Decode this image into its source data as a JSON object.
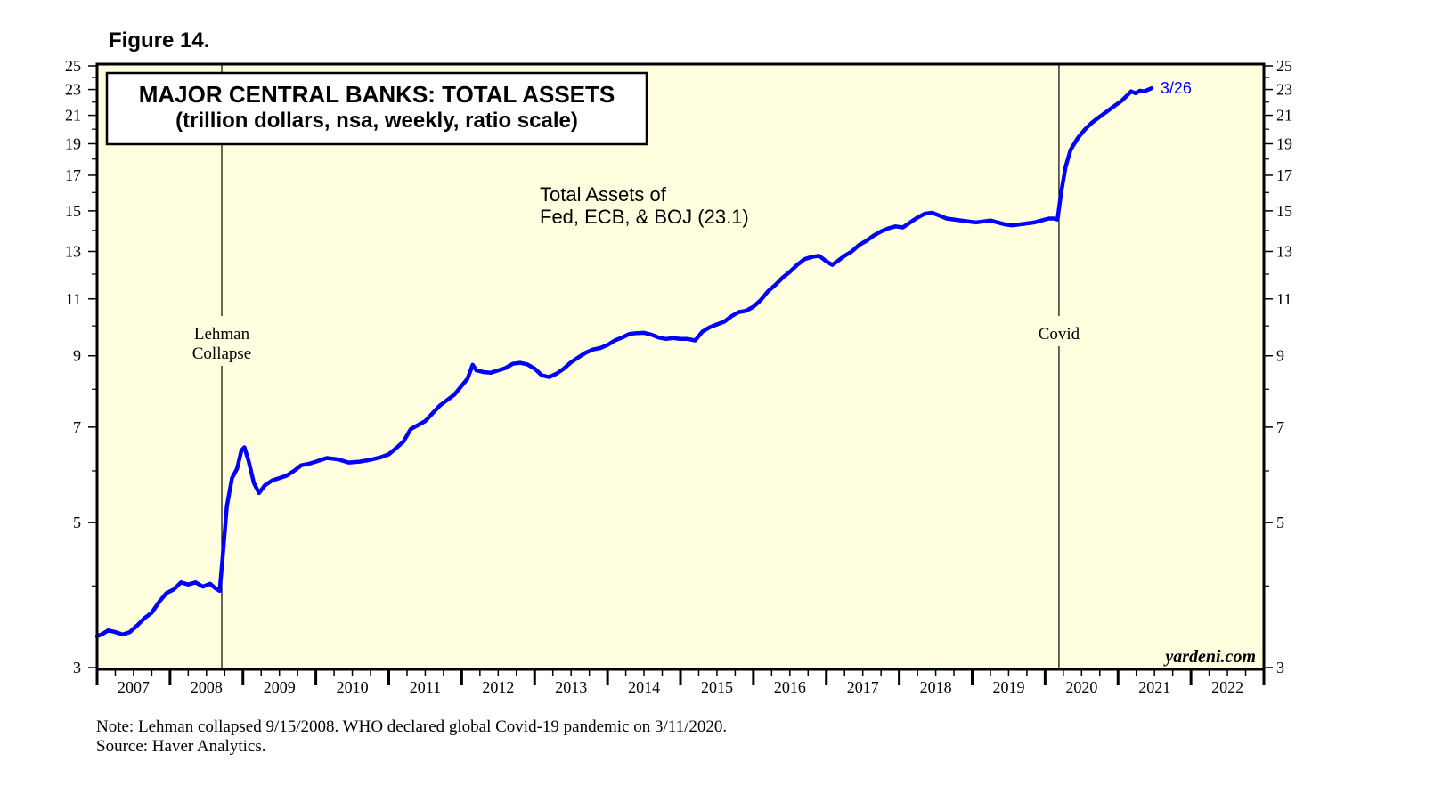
{
  "figure_label": "Figure 14.",
  "chart_data": {
    "type": "line",
    "title": "MAJOR CENTRAL BANKS: TOTAL ASSETS",
    "subtitle": "(trillion dollars, nsa, weekly, ratio scale)",
    "scale": "log",
    "ylim": [
      3,
      25
    ],
    "y_ticks_labeled": [
      3,
      5,
      7,
      9,
      11,
      13,
      15,
      17,
      19,
      21,
      23,
      25
    ],
    "y_ticks_minor": [
      4,
      6,
      8
    ],
    "xlim": [
      2007,
      2023
    ],
    "x_tick_labels": [
      "2007",
      "2008",
      "2009",
      "2010",
      "2011",
      "2012",
      "2013",
      "2014",
      "2015",
      "2016",
      "2017",
      "2018",
      "2019",
      "2020",
      "2021",
      "2022"
    ],
    "grid": false,
    "colors": {
      "plot_bg": "#ffffe0",
      "series": "#0000ff",
      "frame": "#000000"
    },
    "series": [
      {
        "name": "Total Assets of Fed, ECB, & BOJ (23.1)",
        "label_lines": [
          "Total Assets of",
          "Fed, ECB, & BOJ (23.1)"
        ],
        "end_label": "3/26",
        "points": [
          [
            2007.0,
            3.35
          ],
          [
            2007.08,
            3.38
          ],
          [
            2007.15,
            3.42
          ],
          [
            2007.25,
            3.4
          ],
          [
            2007.35,
            3.37
          ],
          [
            2007.45,
            3.4
          ],
          [
            2007.55,
            3.48
          ],
          [
            2007.65,
            3.57
          ],
          [
            2007.75,
            3.64
          ],
          [
            2007.85,
            3.78
          ],
          [
            2007.95,
            3.9
          ],
          [
            2008.05,
            3.95
          ],
          [
            2008.15,
            4.05
          ],
          [
            2008.25,
            4.02
          ],
          [
            2008.35,
            4.05
          ],
          [
            2008.45,
            3.99
          ],
          [
            2008.55,
            4.03
          ],
          [
            2008.62,
            3.97
          ],
          [
            2008.68,
            3.93
          ],
          [
            2008.72,
            4.4
          ],
          [
            2008.78,
            5.3
          ],
          [
            2008.85,
            5.85
          ],
          [
            2008.92,
            6.05
          ],
          [
            2008.98,
            6.45
          ],
          [
            2009.02,
            6.52
          ],
          [
            2009.08,
            6.2
          ],
          [
            2009.15,
            5.75
          ],
          [
            2009.22,
            5.55
          ],
          [
            2009.3,
            5.7
          ],
          [
            2009.4,
            5.8
          ],
          [
            2009.5,
            5.85
          ],
          [
            2009.6,
            5.9
          ],
          [
            2009.7,
            6.0
          ],
          [
            2009.8,
            6.12
          ],
          [
            2009.9,
            6.15
          ],
          [
            2010.0,
            6.2
          ],
          [
            2010.15,
            6.28
          ],
          [
            2010.3,
            6.25
          ],
          [
            2010.45,
            6.18
          ],
          [
            2010.6,
            6.2
          ],
          [
            2010.75,
            6.24
          ],
          [
            2010.9,
            6.3
          ],
          [
            2011.0,
            6.36
          ],
          [
            2011.1,
            6.5
          ],
          [
            2011.2,
            6.65
          ],
          [
            2011.3,
            6.95
          ],
          [
            2011.4,
            7.05
          ],
          [
            2011.5,
            7.15
          ],
          [
            2011.6,
            7.35
          ],
          [
            2011.7,
            7.55
          ],
          [
            2011.8,
            7.7
          ],
          [
            2011.9,
            7.85
          ],
          [
            2012.0,
            8.1
          ],
          [
            2012.08,
            8.3
          ],
          [
            2012.15,
            8.72
          ],
          [
            2012.2,
            8.55
          ],
          [
            2012.3,
            8.5
          ],
          [
            2012.4,
            8.48
          ],
          [
            2012.5,
            8.55
          ],
          [
            2012.6,
            8.62
          ],
          [
            2012.7,
            8.75
          ],
          [
            2012.8,
            8.78
          ],
          [
            2012.9,
            8.73
          ],
          [
            2013.0,
            8.6
          ],
          [
            2013.1,
            8.4
          ],
          [
            2013.2,
            8.35
          ],
          [
            2013.3,
            8.45
          ],
          [
            2013.4,
            8.6
          ],
          [
            2013.5,
            8.8
          ],
          [
            2013.6,
            8.95
          ],
          [
            2013.7,
            9.1
          ],
          [
            2013.8,
            9.2
          ],
          [
            2013.9,
            9.25
          ],
          [
            2014.0,
            9.35
          ],
          [
            2014.1,
            9.5
          ],
          [
            2014.2,
            9.6
          ],
          [
            2014.3,
            9.72
          ],
          [
            2014.4,
            9.75
          ],
          [
            2014.5,
            9.76
          ],
          [
            2014.6,
            9.7
          ],
          [
            2014.7,
            9.6
          ],
          [
            2014.8,
            9.55
          ],
          [
            2014.9,
            9.58
          ],
          [
            2015.0,
            9.55
          ],
          [
            2015.1,
            9.55
          ],
          [
            2015.2,
            9.5
          ],
          [
            2015.3,
            9.8
          ],
          [
            2015.4,
            9.95
          ],
          [
            2015.5,
            10.05
          ],
          [
            2015.6,
            10.15
          ],
          [
            2015.7,
            10.35
          ],
          [
            2015.8,
            10.5
          ],
          [
            2015.9,
            10.55
          ],
          [
            2016.0,
            10.7
          ],
          [
            2016.1,
            10.95
          ],
          [
            2016.2,
            11.3
          ],
          [
            2016.3,
            11.55
          ],
          [
            2016.4,
            11.85
          ],
          [
            2016.5,
            12.1
          ],
          [
            2016.6,
            12.4
          ],
          [
            2016.7,
            12.65
          ],
          [
            2016.8,
            12.75
          ],
          [
            2016.9,
            12.8
          ],
          [
            2017.0,
            12.55
          ],
          [
            2017.08,
            12.4
          ],
          [
            2017.15,
            12.55
          ],
          [
            2017.25,
            12.8
          ],
          [
            2017.35,
            13.0
          ],
          [
            2017.45,
            13.3
          ],
          [
            2017.55,
            13.5
          ],
          [
            2017.65,
            13.75
          ],
          [
            2017.75,
            13.95
          ],
          [
            2017.85,
            14.1
          ],
          [
            2017.95,
            14.2
          ],
          [
            2018.05,
            14.15
          ],
          [
            2018.15,
            14.4
          ],
          [
            2018.25,
            14.65
          ],
          [
            2018.35,
            14.85
          ],
          [
            2018.45,
            14.9
          ],
          [
            2018.55,
            14.75
          ],
          [
            2018.65,
            14.6
          ],
          [
            2018.75,
            14.55
          ],
          [
            2018.85,
            14.5
          ],
          [
            2018.95,
            14.45
          ],
          [
            2019.05,
            14.4
          ],
          [
            2019.15,
            14.45
          ],
          [
            2019.25,
            14.5
          ],
          [
            2019.35,
            14.4
          ],
          [
            2019.45,
            14.3
          ],
          [
            2019.55,
            14.25
          ],
          [
            2019.65,
            14.3
          ],
          [
            2019.75,
            14.35
          ],
          [
            2019.85,
            14.4
          ],
          [
            2019.95,
            14.5
          ],
          [
            2020.05,
            14.6
          ],
          [
            2020.12,
            14.6
          ],
          [
            2020.17,
            14.55
          ],
          [
            2020.22,
            16.0
          ],
          [
            2020.28,
            17.5
          ],
          [
            2020.35,
            18.6
          ],
          [
            2020.45,
            19.4
          ],
          [
            2020.55,
            20.0
          ],
          [
            2020.65,
            20.5
          ],
          [
            2020.75,
            20.9
          ],
          [
            2020.85,
            21.3
          ],
          [
            2020.95,
            21.7
          ],
          [
            2021.05,
            22.1
          ],
          [
            2021.12,
            22.5
          ],
          [
            2021.18,
            22.85
          ],
          [
            2021.24,
            22.7
          ],
          [
            2021.3,
            22.9
          ],
          [
            2021.36,
            22.85
          ],
          [
            2021.42,
            23.0
          ],
          [
            2021.46,
            23.1
          ]
        ]
      }
    ],
    "annotations": [
      {
        "id": "lehman",
        "x": 2008.71,
        "lines": [
          "Lehman",
          "Collapse"
        ]
      },
      {
        "id": "covid",
        "x": 2020.19,
        "lines": [
          "Covid"
        ]
      }
    ],
    "watermark": "yardeni.com"
  },
  "notes": {
    "note": "Note: Lehman collapsed 9/15/2008. WHO declared global Covid-19 pandemic on 3/11/2020.",
    "source": "Source: Haver Analytics."
  }
}
